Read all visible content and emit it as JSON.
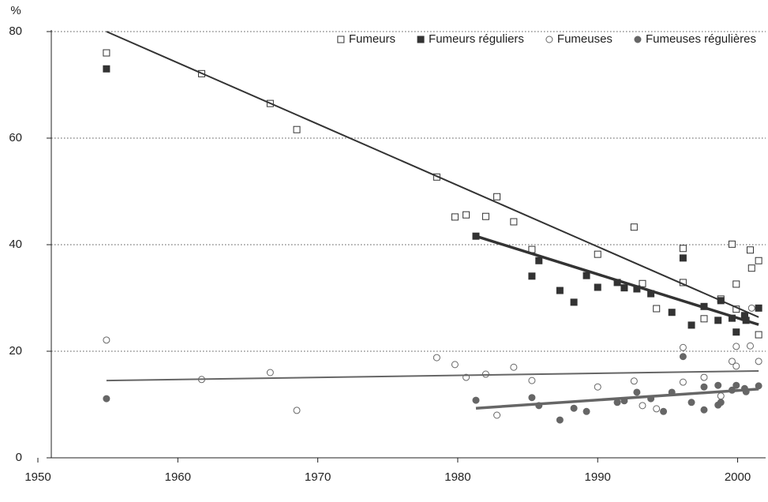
{
  "chart_data": {
    "type": "scatter",
    "y_unit": "%",
    "legend": "upper right",
    "xlim": [
      1950,
      2002
    ],
    "ylim": [
      0,
      80
    ],
    "xticks": [
      1950,
      1960,
      1970,
      1980,
      1990,
      2000
    ],
    "yticks": [
      0,
      20,
      40,
      60,
      80
    ],
    "grid": true,
    "series": [
      {
        "name": "Fumeurs",
        "color": "#333333",
        "marker": "square-open",
        "x": [
          1954.9,
          1961.7,
          1966.6,
          1968.5,
          1978.5,
          1979.8,
          1980.6,
          1982.0,
          1982.8,
          1984.0,
          1985.3,
          1990.0,
          1992.6,
          1993.2,
          1994.2,
          1996.1,
          1996.1,
          1997.6,
          1998.8,
          1999.6,
          1999.9,
          1999.9,
          2000.5,
          2000.9,
          2001.0,
          2001.5,
          2001.5
        ],
        "values": [
          76,
          72.1,
          66.5,
          61.6,
          52.7,
          45.2,
          45.6,
          45.3,
          49,
          44.3,
          39.1,
          38.2,
          43.3,
          32.7,
          28,
          39.3,
          32.9,
          26.1,
          29.8,
          40.1,
          32.6,
          27.9,
          26.4,
          39,
          35.6,
          37,
          23.1
        ],
        "trend": {
          "x": [
            1954.9,
            2001.5
          ],
          "values": [
            80,
            26.4
          ]
        },
        "trend_width": 2
      },
      {
        "name": "Fumeurs réguliers",
        "color": "#333333",
        "marker": "square-filled",
        "x": [
          1954.9,
          1981.3,
          1985.3,
          1985.8,
          1987.3,
          1988.3,
          1989.2,
          1990.0,
          1991.4,
          1991.9,
          1992.8,
          1993.8,
          1995.3,
          1996.1,
          1996.7,
          1997.6,
          1998.6,
          1998.8,
          1999.6,
          1999.9,
          2000.5,
          2000.6,
          2001.5
        ],
        "values": [
          73,
          41.6,
          34.1,
          37,
          31.4,
          29.2,
          34.2,
          32,
          32.9,
          31.9,
          31.7,
          30.8,
          27.3,
          37.5,
          24.9,
          28.4,
          25.8,
          29.5,
          26.2,
          23.6,
          26.7,
          25.8,
          28.1
        ],
        "trend": {
          "x": [
            1981.3,
            2001.5
          ],
          "values": [
            41.6,
            25
          ]
        },
        "trend_width": 3.5
      },
      {
        "name": "Fumeuses",
        "color": "#666666",
        "marker": "circle-open",
        "x": [
          1954.9,
          1961.7,
          1966.6,
          1968.5,
          1978.5,
          1979.8,
          1980.6,
          1982.0,
          1982.8,
          1984.0,
          1985.3,
          1990.0,
          1992.6,
          1993.2,
          1994.2,
          1996.1,
          1996.1,
          1997.6,
          1998.8,
          1999.6,
          1999.9,
          1999.9,
          2000.9,
          2001.0,
          2001.5
        ],
        "values": [
          22.1,
          14.7,
          16,
          8.9,
          18.8,
          17.5,
          15.1,
          15.7,
          8,
          17,
          14.5,
          13.3,
          14.4,
          9.8,
          9.2,
          20.7,
          14.2,
          15.1,
          11.6,
          18.1,
          20.9,
          17.2,
          21,
          28.1,
          18.1
        ],
        "trend": {
          "x": [
            1954.9,
            2001.5
          ],
          "values": [
            14.5,
            16.3
          ]
        },
        "trend_width": 2
      },
      {
        "name": "Fumeuses régulières",
        "color": "#666666",
        "marker": "circle-filled",
        "x": [
          1954.9,
          1981.3,
          1985.3,
          1985.8,
          1987.3,
          1988.3,
          1989.2,
          1991.4,
          1991.9,
          1992.8,
          1993.8,
          1994.7,
          1995.3,
          1996.1,
          1996.7,
          1997.6,
          1997.6,
          1998.6,
          1998.6,
          1998.8,
          1999.6,
          1999.9,
          2000.5,
          2000.6,
          2001.5
        ],
        "values": [
          11.1,
          10.8,
          11.3,
          9.8,
          7.1,
          9.3,
          8.7,
          10.4,
          10.7,
          12.3,
          11.1,
          8.7,
          12.3,
          19,
          10.4,
          13.3,
          9,
          13.6,
          9.9,
          10.4,
          12.7,
          13.6,
          13,
          12.4,
          13.5
        ],
        "trend": {
          "x": [
            1981.3,
            2001.5
          ],
          "values": [
            9.3,
            12.9
          ]
        },
        "trend_width": 3.5
      }
    ]
  }
}
